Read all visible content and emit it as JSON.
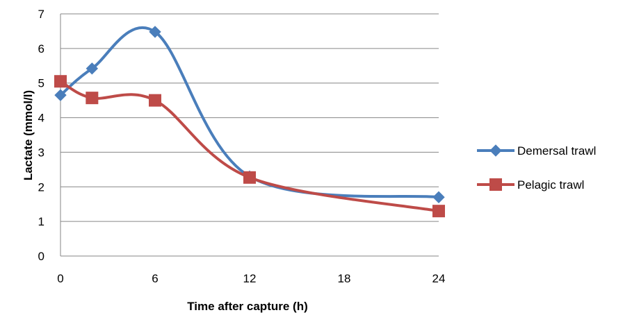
{
  "chart_data": {
    "type": "line",
    "title": "",
    "xlabel": "Time after capture (h)",
    "ylabel": "Lactate (mmol/l)",
    "xlim": [
      0,
      24
    ],
    "ylim": [
      0,
      7
    ],
    "xticks": [
      0,
      6,
      12,
      18,
      24
    ],
    "yticks": [
      0,
      1,
      2,
      3,
      4,
      5,
      6,
      7
    ],
    "grid": "horizontal",
    "smooth": true,
    "legend_position": "right",
    "series": [
      {
        "name": "Demersal trawl",
        "color": "#4A7EBB",
        "marker": "diamond",
        "x": [
          0,
          2,
          6,
          12,
          24
        ],
        "y": [
          4.65,
          5.42,
          6.48,
          2.3,
          1.7
        ]
      },
      {
        "name": "Pelagic trawl",
        "color": "#BE4B48",
        "marker": "square",
        "x": [
          0,
          2,
          6,
          12,
          24
        ],
        "y": [
          5.05,
          4.57,
          4.5,
          2.27,
          1.3
        ]
      }
    ]
  }
}
